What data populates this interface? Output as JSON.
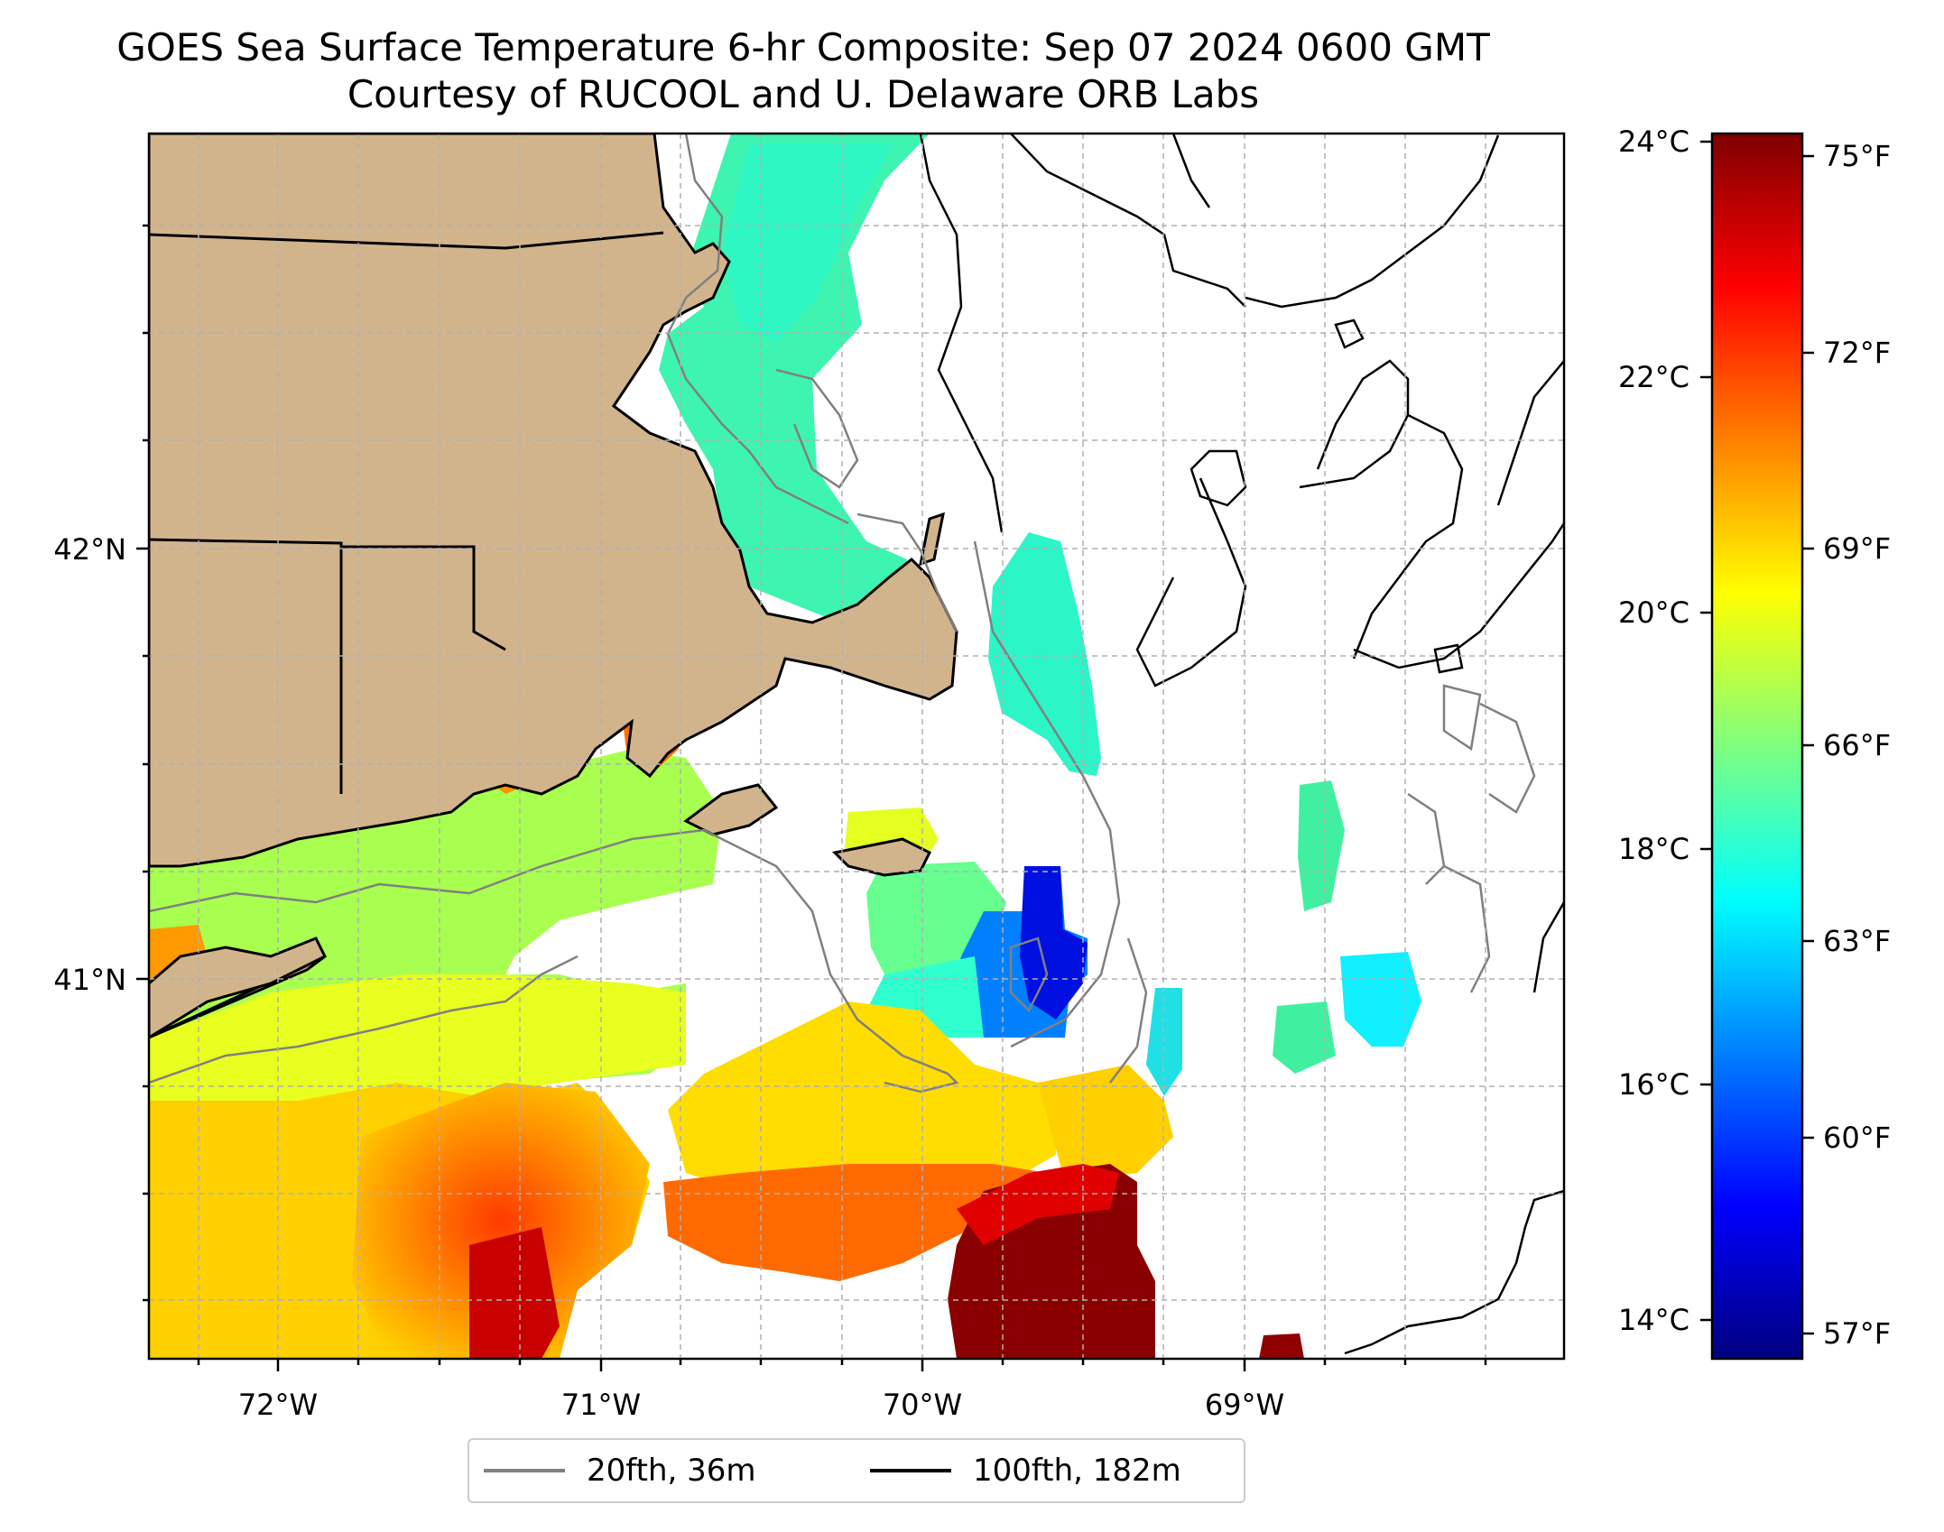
{
  "title": "GOES Sea Surface Temperature 6-hr Composite: Sep 07 2024 0600 GMT",
  "subtitle": "Courtesy of RUCOOL and U. Delaware ORB Labs",
  "lon_ticks": [
    "72°W",
    "71°W",
    "70°W",
    "69°W"
  ],
  "lat_ticks": [
    "42°N",
    "41°N"
  ],
  "colorbar": {
    "celsius_ticks": [
      "24°C",
      "22°C",
      "20°C",
      "18°C",
      "16°C",
      "14°C"
    ],
    "fahrenheit_ticks": [
      "75°F",
      "72°F",
      "69°F",
      "66°F",
      "63°F",
      "60°F",
      "57°F"
    ],
    "range_c": [
      13.7,
      24.1
    ],
    "colormap": "jet"
  },
  "legend": {
    "items": [
      {
        "label": "20fth, 36m",
        "color": "#808080"
      },
      {
        "label": "100fth, 182m",
        "color": "#000000"
      }
    ]
  },
  "colors": {
    "land": "#d2b48c",
    "isobath_20fth": "#808080",
    "isobath_100fth": "#000000",
    "grid": "#b0b0b0"
  }
}
